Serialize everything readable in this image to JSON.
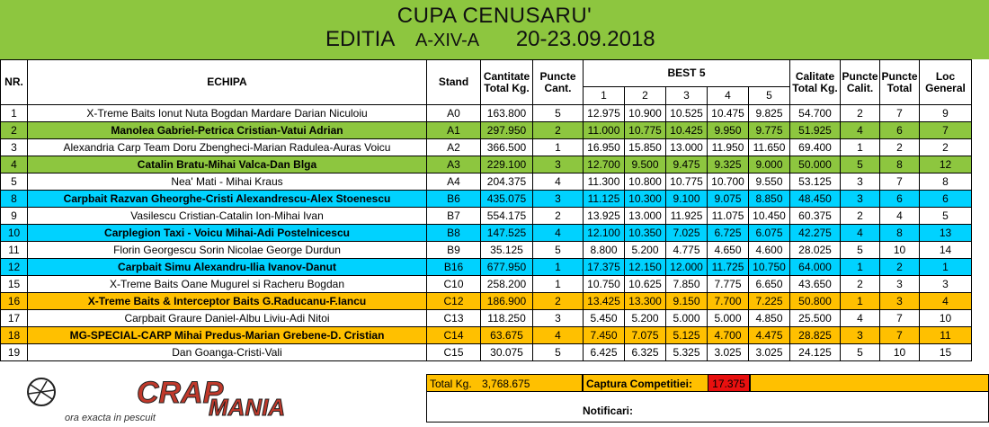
{
  "header": {
    "line1": "CUPA CENUSARU'",
    "editia": "EDITIA",
    "xiv": "A-XIV-A",
    "dates": "20-23.09.2018"
  },
  "columns": {
    "nr": "NR.",
    "echipa": "ECHIPA",
    "stand": "Stand",
    "cantitate": "Cantitate Total Kg.",
    "puncte_cant": "Puncte Cant.",
    "best5": "BEST 5",
    "b1": "1",
    "b2": "2",
    "b3": "3",
    "b4": "4",
    "b5": "5",
    "calitate": "Calitate Total Kg.",
    "puncte_calit": "Puncte Calit.",
    "puncte_total": "Puncte Total",
    "loc": "Loc General"
  },
  "rows": [
    {
      "nr": "1",
      "team": "X-Treme Baits Ionut Nuta Bogdan Mardare Darian Niculoiu",
      "stand": "A0",
      "cant": "163.800",
      "pc": "5",
      "b": [
        "12.975",
        "10.900",
        "10.525",
        "10.475",
        "9.825"
      ],
      "calit": "54.700",
      "pq": "2",
      "pt": "7",
      "loc": "9",
      "color": "white"
    },
    {
      "nr": "2",
      "team": "Manolea Gabriel-Petrica Cristian-Vatui Adrian",
      "stand": "A1",
      "cant": "297.950",
      "pc": "2",
      "b": [
        "11.000",
        "10.775",
        "10.425",
        "9.950",
        "9.775"
      ],
      "calit": "51.925",
      "pq": "4",
      "pt": "6",
      "loc": "7",
      "color": "green"
    },
    {
      "nr": "3",
      "team": "Alexandria Carp Team Doru Zbengheci-Marian Radulea-Auras Voicu",
      "stand": "A2",
      "cant": "366.500",
      "pc": "1",
      "b": [
        "16.950",
        "15.850",
        "13.000",
        "11.950",
        "11.650"
      ],
      "calit": "69.400",
      "pq": "1",
      "pt": "2",
      "loc": "2",
      "color": "white"
    },
    {
      "nr": "4",
      "team": "Catalin Bratu-Mihai Valca-Dan Blga",
      "stand": "A3",
      "cant": "229.100",
      "pc": "3",
      "b": [
        "12.700",
        "9.500",
        "9.475",
        "9.325",
        "9.000"
      ],
      "calit": "50.000",
      "pq": "5",
      "pt": "8",
      "loc": "12",
      "color": "green"
    },
    {
      "nr": "5",
      "team": "Nea' Mati - Mihai Kraus",
      "stand": "A4",
      "cant": "204.375",
      "pc": "4",
      "b": [
        "11.300",
        "10.800",
        "10.775",
        "10.700",
        "9.550"
      ],
      "calit": "53.125",
      "pq": "3",
      "pt": "7",
      "loc": "8",
      "color": "white"
    },
    {
      "nr": "8",
      "team": "Carpbait Razvan Gheorghe-Cristi Alexandrescu-Alex Stoenescu",
      "stand": "B6",
      "cant": "435.075",
      "pc": "3",
      "b": [
        "11.125",
        "10.300",
        "9.100",
        "9.075",
        "8.850"
      ],
      "calit": "48.450",
      "pq": "3",
      "pt": "6",
      "loc": "6",
      "color": "cyan"
    },
    {
      "nr": "9",
      "team": "Vasilescu Cristian-Catalin Ion-Mihai Ivan",
      "stand": "B7",
      "cant": "554.175",
      "pc": "2",
      "b": [
        "13.925",
        "13.000",
        "11.925",
        "11.075",
        "10.450"
      ],
      "calit": "60.375",
      "pq": "2",
      "pt": "4",
      "loc": "5",
      "color": "white"
    },
    {
      "nr": "10",
      "team": "Carplegion Taxi - Voicu Mihai-Adi Postelnicescu",
      "stand": "B8",
      "cant": "147.525",
      "pc": "4",
      "b": [
        "12.100",
        "10.350",
        "7.025",
        "6.725",
        "6.075"
      ],
      "calit": "42.275",
      "pq": "4",
      "pt": "8",
      "loc": "13",
      "color": "cyan"
    },
    {
      "nr": "11",
      "team": "Florin Georgescu Sorin Nicolae George Durdun",
      "stand": "B9",
      "cant": "35.125",
      "pc": "5",
      "b": [
        "8.800",
        "5.200",
        "4.775",
        "4.650",
        "4.600"
      ],
      "calit": "28.025",
      "pq": "5",
      "pt": "10",
      "loc": "14",
      "color": "white"
    },
    {
      "nr": "12",
      "team": "Carpbait Simu Alexandru-Ilia Ivanov-Danut",
      "stand": "B16",
      "cant": "677.950",
      "pc": "1",
      "b": [
        "17.375",
        "12.150",
        "12.000",
        "11.725",
        "10.750"
      ],
      "calit": "64.000",
      "pq": "1",
      "pt": "2",
      "loc": "1",
      "color": "cyan"
    },
    {
      "nr": "15",
      "team": "X-Treme Baits Oane Mugurel si Racheru Bogdan",
      "stand": "C10",
      "cant": "258.200",
      "pc": "1",
      "b": [
        "10.750",
        "10.625",
        "7.850",
        "7.775",
        "6.650"
      ],
      "calit": "43.650",
      "pq": "2",
      "pt": "3",
      "loc": "3",
      "color": "white"
    },
    {
      "nr": "16",
      "team": "X-Treme Baits & Interceptor Baits G.Raducanu-F.Iancu",
      "stand": "C12",
      "cant": "186.900",
      "pc": "2",
      "b": [
        "13.425",
        "13.300",
        "9.150",
        "7.700",
        "7.225"
      ],
      "calit": "50.800",
      "pq": "1",
      "pt": "3",
      "loc": "4",
      "color": "orange"
    },
    {
      "nr": "17",
      "team": "Carpbait Graure Daniel-Albu Liviu-Adi Nitoi",
      "stand": "C13",
      "cant": "118.250",
      "pc": "3",
      "b": [
        "5.450",
        "5.200",
        "5.000",
        "5.000",
        "4.850"
      ],
      "calit": "25.500",
      "pq": "4",
      "pt": "7",
      "loc": "10",
      "color": "white"
    },
    {
      "nr": "18",
      "team": "MG-SPECIAL-CARP Mihai Predus-Marian Grebene-D. Cristian",
      "stand": "C14",
      "cant": "63.675",
      "pc": "4",
      "b": [
        "7.450",
        "7.075",
        "5.125",
        "4.700",
        "4.475"
      ],
      "calit": "28.825",
      "pq": "3",
      "pt": "7",
      "loc": "11",
      "color": "orange"
    },
    {
      "nr": "19",
      "team": "Dan Goanga-Cristi-Vali",
      "stand": "C15",
      "cant": "30.075",
      "pc": "5",
      "b": [
        "6.425",
        "6.325",
        "5.325",
        "3.025",
        "3.025"
      ],
      "calit": "24.125",
      "pq": "5",
      "pt": "10",
      "loc": "15",
      "color": "white"
    }
  ],
  "footer": {
    "total_label": "Total Kg.",
    "total_value": "3,768.675",
    "captura_label": "Captura Competitiei:",
    "captura_value": "17.375",
    "notificari": "Notificari:",
    "logo_text_1": "CRAP",
    "logo_text_2": "MANIA",
    "logo_tagline": "ora exacta in pescuit"
  },
  "colors": {
    "green": "#8dc63f",
    "cyan": "#00d2ff",
    "orange": "#ffc000",
    "red": "#e8100f",
    "logo_red": "#c0392b"
  }
}
